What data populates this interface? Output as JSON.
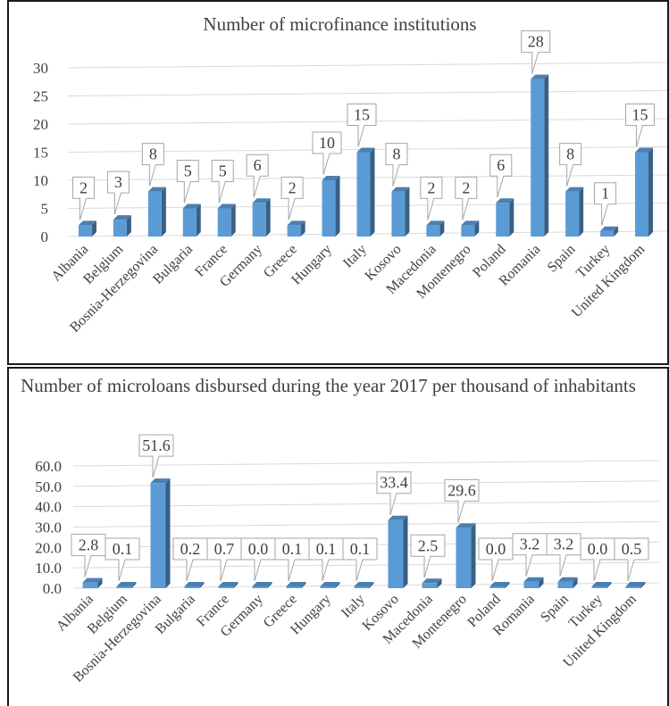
{
  "charts": [
    {
      "title": "Number of microfinance institutions",
      "chart_data": {
        "type": "bar",
        "title": "Number of microfinance institutions",
        "xlabel": "",
        "ylabel": "",
        "ylim": [
          0,
          30
        ],
        "yticks": [
          "0",
          "5",
          "10",
          "15",
          "20",
          "25",
          "30"
        ],
        "grid": true,
        "categories": [
          "Albania",
          "Belgium",
          "Bosnia-Herzegovina",
          "Bulgaria",
          "France",
          "Germany",
          "Greece",
          "Hungary",
          "Italy",
          "Kosovo",
          "Macedonia",
          "Montenegro",
          "Poland",
          "Romania",
          "Spain",
          "Turkey",
          "United Kingdom"
        ],
        "values": [
          2,
          3,
          8,
          5,
          5,
          6,
          2,
          10,
          15,
          8,
          2,
          2,
          6,
          28,
          8,
          1,
          15
        ],
        "labels": [
          "2",
          "3",
          "8",
          "5",
          "5",
          "6",
          "2",
          "10",
          "15",
          "8",
          "2",
          "2",
          "6",
          "28",
          "8",
          "1",
          "15"
        ],
        "bar_color": "#5b9bd5"
      }
    },
    {
      "title": "Number of microloans disbursed during the year 2017 per thousand of inhabitants",
      "chart_data": {
        "type": "bar",
        "title": "Number of microloans disbursed during the year 2017 per thousand of inhabitants",
        "xlabel": "",
        "ylabel": "",
        "ylim": [
          0,
          60
        ],
        "yticks": [
          "0.0",
          "10.0",
          "20.0",
          "30.0",
          "40.0",
          "50.0",
          "60.0"
        ],
        "grid": true,
        "categories": [
          "Albania",
          "Belgium",
          "Bosnia-Herzegovina",
          "Bulgaria",
          "France",
          "Germany",
          "Greece",
          "Hungary",
          "Italy",
          "Kosovo",
          "Macedonia",
          "Montenegro",
          "Poland",
          "Romania",
          "Spain",
          "Turkey",
          "United Kingdom"
        ],
        "values": [
          2.8,
          0.1,
          51.6,
          0.2,
          0.7,
          0.0,
          0.1,
          0.1,
          0.1,
          33.4,
          2.5,
          29.6,
          0.0,
          3.2,
          3.2,
          0.0,
          0.5
        ],
        "labels": [
          "2.8",
          "0.1",
          "51.6",
          "0.2",
          "0.7",
          "0.0",
          "0.1",
          "0.1",
          "0.1",
          "33.4",
          "2.5",
          "29.6",
          "0.0",
          "3.2",
          "3.2",
          "0.0",
          "0.5"
        ],
        "bar_color": "#5b9bd5"
      }
    }
  ]
}
